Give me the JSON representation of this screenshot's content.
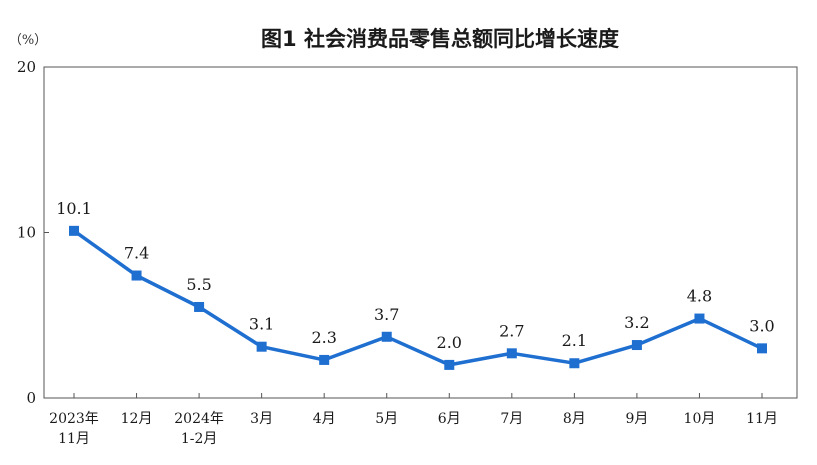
{
  "title": "图1  社会消费品零售总额同比增长速度",
  "unit_label": "（%）",
  "colors": {
    "series": "#1f6fd1",
    "axis": "#555555",
    "text": "#1a1a1a"
  },
  "chart_data": {
    "type": "line",
    "title": "图1  社会消费品零售总额同比增长速度",
    "xlabel": "",
    "ylabel": "（%）",
    "ylim": [
      0,
      20
    ],
    "yticks": [
      0,
      10,
      20
    ],
    "grid": false,
    "legend": "none",
    "categories": [
      [
        "2023年",
        "11月"
      ],
      [
        "12月"
      ],
      [
        "2024年",
        "1-2月"
      ],
      [
        "3月"
      ],
      [
        "4月"
      ],
      [
        "5月"
      ],
      [
        "6月"
      ],
      [
        "7月"
      ],
      [
        "8月"
      ],
      [
        "9月"
      ],
      [
        "10月"
      ],
      [
        "11月"
      ]
    ],
    "values": [
      10.1,
      7.4,
      5.5,
      3.1,
      2.3,
      3.7,
      2.0,
      2.7,
      2.1,
      3.2,
      4.8,
      3.0
    ],
    "data_labels": [
      "10.1",
      "7.4",
      "5.5",
      "3.1",
      "2.3",
      "3.7",
      "2.0",
      "2.7",
      "2.1",
      "3.2",
      "4.8",
      "3.0"
    ],
    "marker": "square"
  }
}
